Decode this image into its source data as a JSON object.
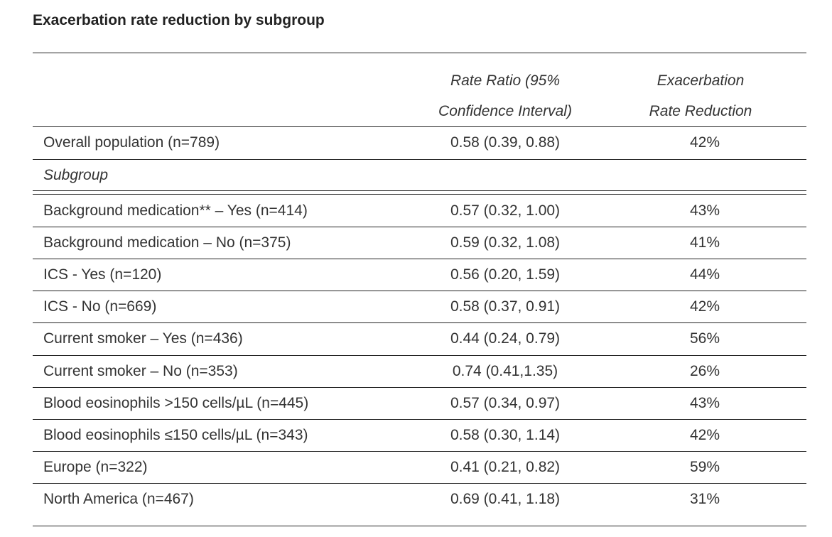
{
  "title": "Exacerbation rate reduction by subgroup",
  "header": {
    "ratio_line1": "Rate Ratio (95%",
    "ratio_line2": "Confidence Interval)",
    "reduction_line1": "Exacerbation",
    "reduction_line2": "Rate Reduction"
  },
  "overall": {
    "label": "Overall population (n=789)",
    "ratio": "0.58 (0.39, 0.88)",
    "reduction": "42%"
  },
  "subgroup_label": "Subgroup",
  "rows": [
    {
      "label": "Background medication** – Yes (n=414)",
      "ratio": "0.57 (0.32, 1.00)",
      "reduction": "43%"
    },
    {
      "label": "Background medication – No (n=375)",
      "ratio": "0.59 (0.32, 1.08)",
      "reduction": "41%"
    },
    {
      "label": "ICS - Yes (n=120)",
      "ratio": "0.56 (0.20, 1.59)",
      "reduction": "44%"
    },
    {
      "label": "ICS - No (n=669)",
      "ratio": "0.58 (0.37, 0.91)",
      "reduction": "42%"
    },
    {
      "label": "Current smoker – Yes (n=436)",
      "ratio": "0.44 (0.24, 0.79)",
      "reduction": "56%"
    },
    {
      "label": "Current smoker – No (n=353)",
      "ratio": "0.74 (0.41,1.35)",
      "reduction": "26%"
    },
    {
      "label": "Blood eosinophils >150 cells/µL (n=445)",
      "ratio": "0.57 (0.34, 0.97)",
      "reduction": "43%"
    },
    {
      "label": "Blood eosinophils ≤150 cells/µL (n=343)",
      "ratio": "0.58 (0.30, 1.14)",
      "reduction": "42%"
    },
    {
      "label": "Europe (n=322)",
      "ratio": "0.41 (0.21, 0.82)",
      "reduction": "59%"
    },
    {
      "label": "North America (n=467)",
      "ratio": "0.69 (0.41, 1.18)",
      "reduction": "31%"
    }
  ]
}
